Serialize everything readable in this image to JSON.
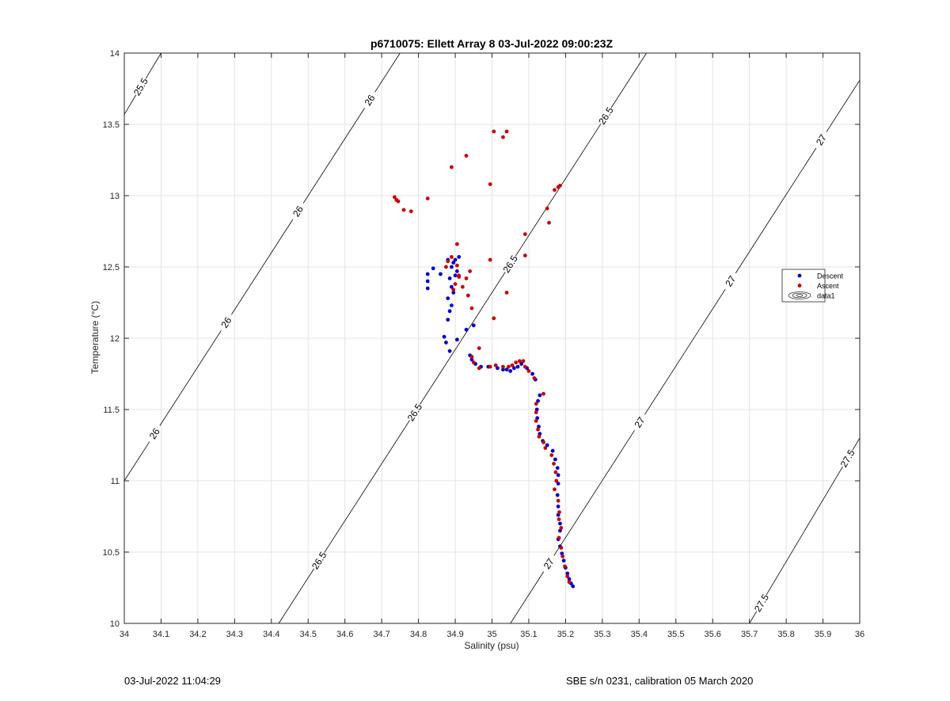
{
  "chart_data": {
    "type": "scatter",
    "title": "p6710075: Ellett Array 8 03-Jul-2022 09:00:23Z",
    "xlabel": "Salinity (psu)",
    "ylabel": "Temperature (°C)",
    "xlim": [
      34,
      36
    ],
    "ylim": [
      10,
      14
    ],
    "xticks": [
      34,
      34.1,
      34.2,
      34.3,
      34.4,
      34.5,
      34.6,
      34.7,
      34.8,
      34.9,
      35,
      35.1,
      35.2,
      35.3,
      35.4,
      35.5,
      35.6,
      35.7,
      35.8,
      35.9,
      36
    ],
    "xtick_labels": [
      "34",
      "34.1",
      "34.2",
      "34.3",
      "34.4",
      "34.5",
      "34.6",
      "34.7",
      "34.8",
      "34.9",
      "35",
      "35.1",
      "35.2",
      "35.3",
      "35.4",
      "35.5",
      "35.6",
      "35.7",
      "35.8",
      "35.9",
      "36"
    ],
    "yticks": [
      10,
      10.5,
      11,
      11.5,
      12,
      12.5,
      13,
      13.5,
      14
    ],
    "ytick_labels": [
      "10",
      "10.5",
      "11",
      "11.5",
      "12",
      "12.5",
      "13",
      "13.5",
      "14"
    ],
    "grid": true,
    "legend": {
      "position": "right",
      "entries": [
        {
          "label": "Descent",
          "color": "#0000cc",
          "marker": "dot"
        },
        {
          "label": "Ascent",
          "color": "#cc0000",
          "marker": "dot"
        },
        {
          "label": "data1",
          "color": "#000000",
          "marker": "contour"
        }
      ]
    },
    "series": [
      {
        "name": "Descent",
        "color": "#0000cc",
        "points": [
          [
            35.22,
            10.26
          ],
          [
            35.215,
            10.28
          ],
          [
            35.21,
            10.31
          ],
          [
            35.205,
            10.35
          ],
          [
            35.2,
            10.39
          ],
          [
            35.195,
            10.44
          ],
          [
            35.19,
            10.49
          ],
          [
            35.185,
            10.54
          ],
          [
            35.18,
            10.59
          ],
          [
            35.185,
            10.65
          ],
          [
            35.185,
            10.7
          ],
          [
            35.18,
            10.76
          ],
          [
            35.18,
            10.82
          ],
          [
            35.178,
            10.9
          ],
          [
            35.18,
            10.98
          ],
          [
            35.18,
            11.04
          ],
          [
            35.178,
            11.09
          ],
          [
            35.172,
            11.15
          ],
          [
            35.165,
            11.21
          ],
          [
            35.15,
            11.25
          ],
          [
            35.138,
            11.28
          ],
          [
            35.13,
            11.33
          ],
          [
            35.127,
            11.38
          ],
          [
            35.123,
            11.44
          ],
          [
            35.122,
            11.5
          ],
          [
            35.125,
            11.56
          ],
          [
            35.13,
            11.6
          ],
          [
            35.118,
            11.71
          ],
          [
            35.11,
            11.75
          ],
          [
            35.095,
            11.79
          ],
          [
            35.08,
            11.82
          ],
          [
            35.07,
            11.8
          ],
          [
            35.06,
            11.79
          ],
          [
            35.05,
            11.77
          ],
          [
            35.04,
            11.78
          ],
          [
            35.03,
            11.78
          ],
          [
            35.015,
            11.79
          ],
          [
            34.99,
            11.8
          ],
          [
            34.97,
            11.8
          ],
          [
            34.955,
            11.82
          ],
          [
            34.945,
            11.85
          ],
          [
            34.94,
            11.88
          ],
          [
            34.95,
            12.09
          ],
          [
            34.93,
            12.06
          ],
          [
            34.905,
            11.99
          ],
          [
            34.885,
            11.91
          ],
          [
            34.875,
            11.97
          ],
          [
            34.87,
            12.01
          ],
          [
            34.88,
            12.13
          ],
          [
            34.885,
            12.19
          ],
          [
            34.89,
            12.23
          ],
          [
            34.89,
            12.36
          ],
          [
            34.885,
            12.42
          ],
          [
            34.89,
            12.5
          ],
          [
            34.895,
            12.53
          ],
          [
            34.88,
            12.55
          ],
          [
            34.91,
            12.57
          ],
          [
            34.9,
            12.55
          ],
          [
            34.86,
            12.45
          ],
          [
            34.84,
            12.49
          ],
          [
            34.825,
            12.45
          ],
          [
            34.825,
            12.4
          ],
          [
            34.825,
            12.35
          ],
          [
            34.88,
            12.28
          ],
          [
            34.895,
            12.32
          ],
          [
            34.9,
            12.44
          ],
          [
            34.905,
            12.47
          ]
        ]
      },
      {
        "name": "Ascent",
        "color": "#cc0000",
        "points": [
          [
            35.21,
            10.29
          ],
          [
            35.205,
            10.33
          ],
          [
            35.198,
            10.4
          ],
          [
            35.192,
            10.47
          ],
          [
            35.188,
            10.53
          ],
          [
            35.182,
            10.6
          ],
          [
            35.188,
            10.67
          ],
          [
            35.182,
            10.73
          ],
          [
            35.183,
            10.78
          ],
          [
            35.18,
            10.86
          ],
          [
            35.17,
            10.94
          ],
          [
            35.175,
            11
          ],
          [
            35.173,
            11.06
          ],
          [
            35.168,
            11.12
          ],
          [
            35.162,
            11.18
          ],
          [
            35.145,
            11.23
          ],
          [
            35.14,
            11.27
          ],
          [
            35.128,
            11.31
          ],
          [
            35.125,
            11.36
          ],
          [
            35.12,
            11.42
          ],
          [
            35.12,
            11.48
          ],
          [
            35.12,
            11.54
          ],
          [
            35.14,
            11.61
          ],
          [
            35.115,
            11.72
          ],
          [
            35.1,
            11.77
          ],
          [
            35.09,
            11.8
          ],
          [
            35.085,
            11.84
          ],
          [
            35.075,
            11.84
          ],
          [
            35.065,
            11.83
          ],
          [
            35.055,
            11.81
          ],
          [
            35.045,
            11.8
          ],
          [
            35.03,
            11.8
          ],
          [
            35.01,
            11.81
          ],
          [
            34.995,
            11.8
          ],
          [
            34.965,
            11.79
          ],
          [
            34.95,
            11.83
          ],
          [
            34.945,
            11.87
          ],
          [
            34.965,
            11.93
          ],
          [
            34.945,
            12.21
          ],
          [
            34.935,
            12.3
          ],
          [
            34.94,
            12.47
          ],
          [
            34.93,
            12.42
          ],
          [
            34.92,
            12.36
          ],
          [
            34.91,
            12.43
          ],
          [
            34.905,
            12.51
          ],
          [
            34.89,
            12.57
          ],
          [
            34.88,
            12.54
          ],
          [
            34.875,
            12.5
          ],
          [
            34.905,
            12.66
          ],
          [
            34.9,
            12.38
          ],
          [
            34.895,
            12.34
          ],
          [
            34.91,
            12.44
          ],
          [
            35.005,
            12.14
          ],
          [
            35.04,
            12.32
          ],
          [
            34.995,
            12.55
          ],
          [
            35.09,
            12.58
          ],
          [
            35.09,
            12.73
          ],
          [
            35.155,
            12.81
          ],
          [
            35.15,
            12.91
          ],
          [
            35.17,
            13.04
          ],
          [
            35.18,
            13.06
          ],
          [
            35.185,
            13.07
          ],
          [
            34.995,
            13.08
          ],
          [
            34.89,
            13.2
          ],
          [
            34.93,
            13.28
          ],
          [
            35.005,
            13.45
          ],
          [
            35.04,
            13.45
          ],
          [
            35.03,
            13.41
          ],
          [
            34.825,
            12.98
          ],
          [
            34.735,
            12.99
          ],
          [
            34.74,
            12.97
          ],
          [
            34.745,
            12.96
          ],
          [
            34.76,
            12.9
          ],
          [
            34.78,
            12.89
          ]
        ]
      }
    ],
    "isopycnals": [
      {
        "sigma": 25.5,
        "slope": 8.4,
        "segment": [
          [
            34,
            13.57
          ],
          [
            34.1,
            14.0
          ]
        ],
        "labels": [
          "25.5"
        ]
      },
      {
        "sigma": 26,
        "slope": 8.4,
        "segment": [
          [
            34,
            11.0
          ],
          [
            34.75,
            14.0
          ]
        ],
        "labels": [
          "26",
          "26",
          "26",
          "26"
        ]
      },
      {
        "sigma": 26.5,
        "slope": 8.4,
        "segment": [
          [
            34.42,
            10.0
          ],
          [
            35.42,
            14.0
          ]
        ],
        "labels": [
          "26.5",
          "26.5",
          "26.5",
          "26.5"
        ]
      },
      {
        "sigma": 27,
        "slope": 8.4,
        "segment": [
          [
            35.05,
            10.0
          ],
          [
            36,
            13.81
          ]
        ],
        "labels": [
          "27",
          "27",
          "27",
          "27"
        ]
      },
      {
        "sigma": 27.5,
        "slope": 8.4,
        "segment": [
          [
            35.7,
            10.0
          ],
          [
            36,
            11.3
          ]
        ],
        "labels": [
          "27.5",
          "27.5"
        ]
      }
    ]
  },
  "footer": {
    "left": "03-Jul-2022 11:04:29",
    "right": "SBE s/n 0231, calibration 05 March 2020"
  }
}
